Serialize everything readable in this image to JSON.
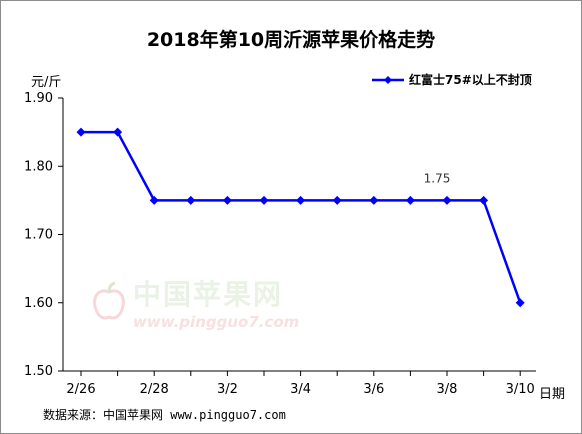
{
  "chart_data": {
    "type": "line",
    "title": "2018年第10周沂源苹果价格走势",
    "ylabel": "元/斤",
    "xlabel": "日期",
    "ylim": [
      1.5,
      1.9
    ],
    "yticks": [
      "1.50",
      "1.60",
      "1.70",
      "1.80",
      "1.90"
    ],
    "ytick_values": [
      1.5,
      1.6,
      1.7,
      1.8,
      1.9
    ],
    "categories": [
      "2/26",
      "2/27",
      "2/28",
      "3/1",
      "3/2",
      "3/3",
      "3/4",
      "3/5",
      "3/6",
      "3/7",
      "3/8",
      "3/9",
      "3/10"
    ],
    "xtick_labels": [
      "2/26",
      "",
      "2/28",
      "",
      "3/2",
      "",
      "3/4",
      "",
      "3/6",
      "",
      "3/8",
      "",
      "3/10"
    ],
    "series": [
      {
        "name": "红富士75#以上不封顶",
        "color": "#0000ff",
        "values": [
          1.85,
          1.85,
          1.75,
          1.75,
          1.75,
          1.75,
          1.75,
          1.75,
          1.75,
          1.75,
          1.75,
          1.75,
          1.6
        ]
      }
    ],
    "annotations": [
      {
        "category": "3/8",
        "value": 1.75,
        "text": "1.75"
      }
    ],
    "legend_position": "top-right",
    "grid": false
  },
  "source_text": "数据来源：中国苹果网 www.pingguo7.com",
  "watermark": {
    "main": "中国苹果网",
    "url": "www.pingguo7.com"
  }
}
